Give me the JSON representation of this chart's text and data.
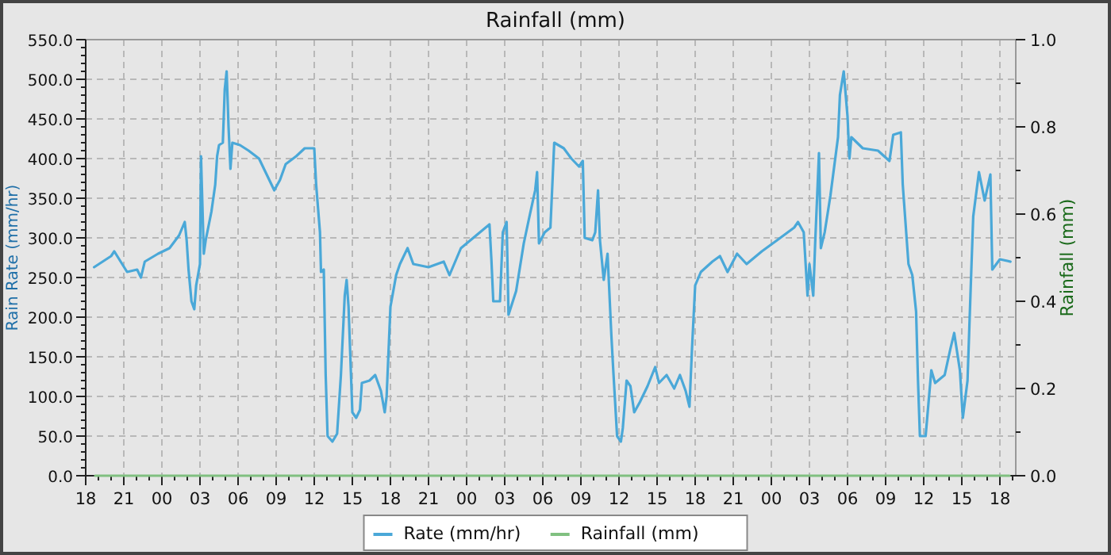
{
  "chart_data": {
    "type": "line",
    "title": "Rainfall (mm)",
    "ylabel": "Rain Rate (mm/hr)",
    "y2label": "Rainfall (mm)",
    "xlim": [
      18,
      91.25
    ],
    "ylim": [
      0,
      550
    ],
    "y2lim": [
      0,
      1
    ],
    "xticks": [
      18,
      {
        "value": 19,
        "label": null
      },
      {
        "value": 20,
        "label": null
      },
      21,
      {
        "value": 22,
        "label": null
      },
      {
        "value": 23,
        "label": null
      },
      {
        "value": 24,
        "label": "00"
      },
      {
        "value": 25,
        "label": null
      },
      {
        "value": 26,
        "label": null
      },
      {
        "value": 27,
        "label": "03"
      },
      {
        "value": 28,
        "label": null
      },
      {
        "value": 29,
        "label": null
      },
      {
        "value": 30,
        "label": "06"
      },
      {
        "value": 31,
        "label": null
      },
      {
        "value": 32,
        "label": null
      },
      {
        "value": 33,
        "label": "09"
      },
      {
        "value": 34,
        "label": null
      },
      {
        "value": 35,
        "label": null
      },
      {
        "value": 36,
        "label": "12"
      },
      {
        "value": 37,
        "label": null
      },
      {
        "value": 38,
        "label": null
      },
      {
        "value": 39,
        "label": "15"
      },
      {
        "value": 40,
        "label": null
      },
      {
        "value": 41,
        "label": null
      },
      {
        "value": 42,
        "label": "18"
      },
      {
        "value": 43,
        "label": null
      },
      {
        "value": 44,
        "label": null
      },
      {
        "value": 45,
        "label": "21"
      },
      {
        "value": 46,
        "label": null
      },
      {
        "value": 47,
        "label": null
      },
      {
        "value": 48,
        "label": "00"
      },
      {
        "value": 49,
        "label": null
      },
      {
        "value": 50,
        "label": null
      },
      {
        "value": 51,
        "label": "03"
      },
      {
        "value": 52,
        "label": null
      },
      {
        "value": 53,
        "label": null
      },
      {
        "value": 54,
        "label": "06"
      },
      {
        "value": 55,
        "label": null
      },
      {
        "value": 56,
        "label": null
      },
      {
        "value": 57,
        "label": "09"
      },
      {
        "value": 58,
        "label": null
      },
      {
        "value": 59,
        "label": null
      },
      {
        "value": 60,
        "label": "12"
      },
      {
        "value": 61,
        "label": null
      },
      {
        "value": 62,
        "label": null
      },
      {
        "value": 63,
        "label": "15"
      },
      {
        "value": 64,
        "label": null
      },
      {
        "value": 65,
        "label": null
      },
      {
        "value": 66,
        "label": "18"
      },
      {
        "value": 67,
        "label": null
      },
      {
        "value": 68,
        "label": null
      },
      {
        "value": 69,
        "label": "21"
      },
      {
        "value": 70,
        "label": null
      },
      {
        "value": 71,
        "label": null
      },
      {
        "value": 72,
        "label": "00"
      },
      {
        "value": 73,
        "label": null
      },
      {
        "value": 74,
        "label": null
      },
      {
        "value": 75,
        "label": "03"
      },
      {
        "value": 76,
        "label": null
      },
      {
        "value": 77,
        "label": null
      },
      {
        "value": 78,
        "label": "06"
      },
      {
        "value": 79,
        "label": null
      },
      {
        "value": 80,
        "label": null
      },
      {
        "value": 81,
        "label": "09"
      },
      {
        "value": 82,
        "label": null
      },
      {
        "value": 83,
        "label": null
      },
      {
        "value": 84,
        "label": "12"
      },
      {
        "value": 85,
        "label": null
      },
      {
        "value": 86,
        "label": null
      },
      {
        "value": 87,
        "label": "15"
      },
      {
        "value": 88,
        "label": null
      },
      {
        "value": 89,
        "label": null
      },
      {
        "value": 90,
        "label": "18"
      },
      {
        "value": 91,
        "label": null
      }
    ],
    "yticks": [
      {
        "value": 0,
        "label": "0.0"
      },
      {
        "value": 10,
        "label": null
      },
      {
        "value": 20,
        "label": null
      },
      {
        "value": 30,
        "label": null
      },
      {
        "value": 40,
        "label": null
      },
      {
        "value": 50,
        "label": "50.0"
      },
      {
        "value": 60,
        "label": null
      },
      {
        "value": 70,
        "label": null
      },
      {
        "value": 80,
        "label": null
      },
      {
        "value": 90,
        "label": null
      },
      {
        "value": 100,
        "label": "100.0"
      },
      {
        "value": 110,
        "label": null
      },
      {
        "value": 120,
        "label": null
      },
      {
        "value": 130,
        "label": null
      },
      {
        "value": 140,
        "label": null
      },
      {
        "value": 150,
        "label": "150.0"
      },
      {
        "value": 160,
        "label": null
      },
      {
        "value": 170,
        "label": null
      },
      {
        "value": 180,
        "label": null
      },
      {
        "value": 190,
        "label": null
      },
      {
        "value": 200,
        "label": "200.0"
      },
      {
        "value": 210,
        "label": null
      },
      {
        "value": 220,
        "label": null
      },
      {
        "value": 230,
        "label": null
      },
      {
        "value": 240,
        "label": null
      },
      {
        "value": 250,
        "label": "250.0"
      },
      {
        "value": 260,
        "label": null
      },
      {
        "value": 270,
        "label": null
      },
      {
        "value": 280,
        "label": null
      },
      {
        "value": 290,
        "label": null
      },
      {
        "value": 300,
        "label": "300.0"
      },
      {
        "value": 310,
        "label": null
      },
      {
        "value": 320,
        "label": null
      },
      {
        "value": 330,
        "label": null
      },
      {
        "value": 340,
        "label": null
      },
      {
        "value": 350,
        "label": "350.0"
      },
      {
        "value": 360,
        "label": null
      },
      {
        "value": 370,
        "label": null
      },
      {
        "value": 380,
        "label": null
      },
      {
        "value": 390,
        "label": null
      },
      {
        "value": 400,
        "label": "400.0"
      },
      {
        "value": 410,
        "label": null
      },
      {
        "value": 420,
        "label": null
      },
      {
        "value": 430,
        "label": null
      },
      {
        "value": 440,
        "label": null
      },
      {
        "value": 450,
        "label": "450.0"
      },
      {
        "value": 460,
        "label": null
      },
      {
        "value": 470,
        "label": null
      },
      {
        "value": 480,
        "label": null
      },
      {
        "value": 490,
        "label": null
      },
      {
        "value": 500,
        "label": "500.0"
      },
      {
        "value": 510,
        "label": null
      },
      {
        "value": 520,
        "label": null
      },
      {
        "value": 530,
        "label": null
      },
      {
        "value": 540,
        "label": null
      },
      {
        "value": 550,
        "label": "550.0"
      }
    ],
    "y2ticks": [
      {
        "value": 0,
        "label": "0.0"
      },
      {
        "value": 0.1,
        "label": null
      },
      {
        "value": 0.2,
        "label": "0.2"
      },
      {
        "value": 0.3,
        "label": null
      },
      {
        "value": 0.4,
        "label": "0.4"
      },
      {
        "value": 0.5,
        "label": null
      },
      {
        "value": 0.6,
        "label": "0.6"
      },
      {
        "value": 0.7,
        "label": null
      },
      {
        "value": 0.8,
        "label": "0.8"
      },
      {
        "value": 0.9,
        "label": null
      },
      {
        "value": 1,
        "label": "1.0"
      }
    ],
    "grid": true,
    "legend": "bottom",
    "line_style": "solid",
    "marker": "none",
    "series": [
      {
        "name": "Rate (mm/hr)",
        "color": "#4aa8d8",
        "x": [
          18.66,
          20.0,
          20.25,
          21.26,
          22.05,
          22.35,
          22.65,
          23.7,
          24.6,
          25.35,
          25.8,
          25.95,
          26.1,
          26.33,
          26.55,
          26.7,
          27.0,
          27.08,
          27.3,
          27.45,
          27.9,
          28.2,
          28.35,
          28.5,
          28.8,
          28.95,
          29.1,
          29.25,
          29.4,
          29.55,
          30.15,
          30.83,
          31.65,
          32.25,
          32.85,
          33.3,
          33.75,
          34.58,
          35.25,
          36.0,
          36.15,
          36.45,
          36.53,
          36.75,
          36.9,
          37.05,
          37.43,
          37.8,
          38.1,
          38.4,
          38.55,
          38.7,
          39.0,
          39.3,
          39.6,
          39.75,
          40.35,
          40.8,
          41.25,
          41.55,
          41.7,
          42.0,
          42.45,
          42.75,
          43.35,
          43.8,
          45.0,
          46.2,
          46.65,
          47.55,
          48.75,
          49.8,
          49.95,
          50.1,
          50.63,
          50.85,
          51.15,
          51.3,
          51.9,
          52.5,
          52.95,
          53.4,
          53.55,
          53.7,
          54.15,
          54.6,
          54.9,
          55.65,
          56.25,
          56.85,
          57.15,
          57.3,
          57.9,
          58.13,
          58.35,
          58.5,
          58.8,
          59.1,
          59.4,
          59.55,
          59.85,
          60.15,
          60.3,
          60.6,
          60.9,
          61.2,
          61.65,
          62.25,
          62.85,
          63.15,
          63.75,
          64.35,
          64.8,
          65.25,
          65.55,
          65.75,
          66.0,
          66.45,
          67.35,
          67.95,
          68.55,
          69.3,
          70.05,
          71.25,
          72.45,
          73.8,
          74.1,
          74.55,
          74.85,
          75.0,
          75.3,
          75.45,
          75.75,
          75.9,
          76.2,
          76.65,
          77.25,
          77.4,
          77.7,
          78.0,
          78.15,
          78.3,
          79.2,
          80.4,
          81.3,
          81.6,
          82.2,
          82.35,
          82.8,
          83.1,
          83.4,
          83.55,
          83.7,
          84.15,
          84.6,
          84.9,
          85.65,
          86.1,
          86.4,
          86.85,
          87.08,
          87.45,
          87.75,
          87.9,
          88.35,
          88.8,
          89.25,
          89.4,
          90.0,
          90.83
        ],
        "values": [
          263,
          277,
          283,
          257,
          260,
          250,
          270,
          280,
          287,
          303,
          320,
          297,
          260,
          220,
          210,
          240,
          267,
          403,
          280,
          297,
          333,
          367,
          403,
          417,
          420,
          487,
          510,
          440,
          387,
          420,
          417,
          410,
          400,
          380,
          360,
          373,
          393,
          403,
          413,
          413,
          367,
          307,
          257,
          260,
          127,
          50,
          43,
          53,
          127,
          227,
          247,
          213,
          80,
          73,
          83,
          117,
          120,
          127,
          107,
          80,
          100,
          213,
          253,
          267,
          287,
          267,
          263,
          270,
          253,
          287,
          303,
          317,
          273,
          220,
          220,
          307,
          320,
          203,
          233,
          293,
          327,
          360,
          383,
          293,
          307,
          313,
          420,
          413,
          400,
          390,
          397,
          300,
          297,
          307,
          360,
          297,
          247,
          280,
          177,
          133,
          50,
          43,
          60,
          120,
          113,
          80,
          93,
          113,
          137,
          117,
          127,
          110,
          127,
          107,
          87,
          160,
          240,
          257,
          270,
          277,
          257,
          280,
          267,
          283,
          297,
          313,
          320,
          307,
          227,
          267,
          227,
          293,
          407,
          287,
          307,
          353,
          427,
          480,
          510,
          453,
          400,
          427,
          413,
          410,
          397,
          430,
          433,
          367,
          267,
          253,
          207,
          120,
          50,
          50,
          133,
          117,
          127,
          160,
          180,
          133,
          73,
          120,
          260,
          327,
          383,
          347,
          380,
          260,
          273,
          270
        ]
      },
      {
        "name": "Rainfall (mm)",
        "type": "line",
        "color": "#80c080",
        "x": [
          18.75,
          90.75
        ],
        "values": [
          0,
          0
        ]
      }
    ]
  }
}
